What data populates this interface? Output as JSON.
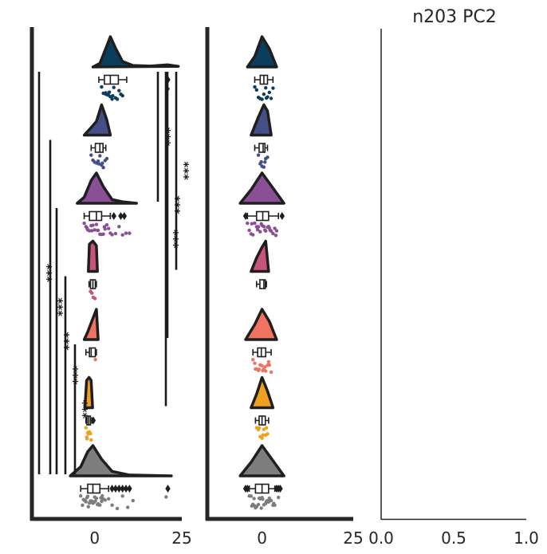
{
  "chart_data": [
    {
      "type": "raincloud",
      "panel": "left",
      "title": "",
      "xlim": [
        -18,
        25
      ],
      "xticks": [
        0,
        25
      ],
      "xtick_labels": [
        "0",
        "25"
      ],
      "grid": false,
      "groups": [
        {
          "color": "#0b3d5c",
          "median": 4.5,
          "q1": 2.8,
          "q3": 6.8,
          "whisker_low": 1.2,
          "whisker_high": 9.2,
          "density": [
            [
              -0.5,
              0
            ],
            [
              1.5,
              0.12
            ],
            [
              3,
              0.55
            ],
            [
              4.5,
              1
            ],
            [
              6,
              0.62
            ],
            [
              8,
              0.18
            ],
            [
              11,
              0.05
            ],
            [
              16,
              0.03
            ],
            [
              21,
              0.07
            ],
            [
              24,
              0.02
            ]
          ],
          "outliers": [
            21
          ],
          "points": [
            2,
            3,
            3.5,
            4,
            4.5,
            5,
            5.5,
            6,
            7,
            8,
            2.5,
            4.2,
            6.5,
            7.5,
            3.2,
            5.2,
            21
          ]
        },
        {
          "color": "#434f86",
          "median": 1.5,
          "q1": 0.2,
          "q3": 2.4,
          "whisker_low": -1.0,
          "whisker_high": 3.2,
          "density": [
            [
              -3,
              0
            ],
            [
              -1,
              0.25
            ],
            [
              0.5,
              0.45
            ],
            [
              2,
              1
            ],
            [
              3.5,
              0.5
            ],
            [
              4.5,
              0
            ]
          ],
          "outliers": [],
          "points": [
            -1,
            -0.5,
            0,
            0.5,
            1,
            1.5,
            2,
            2.5,
            3,
            3.5,
            1.2,
            2.2
          ]
        },
        {
          "color": "#8a4f95",
          "median": 0.5,
          "q1": -1.5,
          "q3": 2.0,
          "whisker_low": -3.0,
          "whisker_high": 4.5,
          "density": [
            [
              -5,
              0
            ],
            [
              -3,
              0.2
            ],
            [
              -1,
              0.75
            ],
            [
              0.5,
              1
            ],
            [
              2.5,
              0.55
            ],
            [
              5,
              0.12
            ],
            [
              8,
              0.05
            ],
            [
              12,
              0
            ]
          ],
          "outliers": [
            5.5,
            7.5,
            8.5
          ],
          "points": [
            -3,
            -2.5,
            -2,
            -1.5,
            -1,
            -0.5,
            0,
            0.5,
            1,
            1.5,
            2,
            2.5,
            3,
            3.5,
            4,
            5,
            6,
            7,
            9,
            10,
            -2.2,
            -0.8,
            0.8,
            2.8,
            4.5,
            8
          ]
        },
        {
          "color": "#c8547a",
          "median": -0.5,
          "q1": -1.2,
          "q3": 0.2,
          "whisker_low": -1.6,
          "whisker_high": 0.5,
          "density": [
            [
              -1.8,
              0
            ],
            [
              -1.5,
              0.9
            ],
            [
              -0.5,
              1
            ],
            [
              0.5,
              0.85
            ],
            [
              0.8,
              0
            ]
          ],
          "outliers": [],
          "points": [
            -1.2,
            -0.8,
            -0.4,
            0.1
          ]
        },
        {
          "color": "#f07260",
          "median": -1.0,
          "q1": -1.5,
          "q3": 0.2,
          "whisker_low": -2.5,
          "whisker_high": 0.5,
          "density": [
            [
              -3,
              0
            ],
            [
              -2,
              0.25
            ],
            [
              -1,
              0.55
            ],
            [
              0,
              0.85
            ],
            [
              0.5,
              1
            ],
            [
              1,
              0
            ]
          ],
          "outliers": [],
          "points": [
            0.2
          ]
        },
        {
          "color": "#f0a020",
          "median": -1.7,
          "q1": -2.2,
          "q3": -1.2,
          "whisker_low": -2.5,
          "whisker_high": -0.8,
          "density": [
            [
              -2.8,
              0
            ],
            [
              -2.3,
              0.9
            ],
            [
              -1.6,
              1
            ],
            [
              -1,
              0.9
            ],
            [
              -0.6,
              0
            ]
          ],
          "outliers": [
            -0.4
          ],
          "points": [
            -2.5,
            -2.2,
            -2,
            -1.8,
            -1.5,
            -1.2,
            -2.3,
            -1.6,
            -1
          ]
        },
        {
          "color": "#7d7d7d",
          "median": -0.5,
          "q1": -2.0,
          "q3": 1.5,
          "whisker_low": -4.0,
          "whisker_high": 4.0,
          "density": [
            [
              -7,
              0
            ],
            [
              -4,
              0.3
            ],
            [
              -2,
              0.8
            ],
            [
              -0.5,
              1
            ],
            [
              2,
              0.55
            ],
            [
              5,
              0.15
            ],
            [
              10,
              0.03
            ],
            [
              22,
              0
            ]
          ],
          "outliers": [
            5,
            6,
            7,
            8,
            9,
            10,
            21
          ],
          "points": [
            -4,
            -3.5,
            -3,
            -2.5,
            -2,
            -1.5,
            -1,
            -0.5,
            0,
            0.5,
            1,
            1.5,
            2,
            2.5,
            3,
            -3.2,
            -2.2,
            -1.2,
            -0.2,
            0.8,
            1.8,
            4,
            5,
            6.5,
            8,
            9.5,
            11,
            20.5,
            -2.8,
            -1.8,
            -0.8,
            0.2,
            1.2,
            2.2
          ]
        }
      ],
      "significance": [
        {
          "from": 0,
          "to": 6,
          "label": "***",
          "side": "left"
        },
        {
          "from": 1,
          "to": 6,
          "label": "***",
          "side": "left"
        },
        {
          "from": 2,
          "to": 6,
          "label": "***",
          "side": "left"
        },
        {
          "from": 3,
          "to": 6,
          "label": "***",
          "side": "left"
        },
        {
          "from": 4,
          "to": 6,
          "label": "***",
          "side": "left"
        },
        {
          "from": 0,
          "to": 2,
          "label": "***",
          "side": "right"
        },
        {
          "from": 0,
          "to": 4,
          "label": "***",
          "side": "right"
        },
        {
          "from": 0,
          "to": 3,
          "label": "***",
          "side": "right"
        },
        {
          "from": 0,
          "to": 5,
          "label": "***",
          "side": "right"
        }
      ]
    },
    {
      "type": "raincloud",
      "panel": "middle",
      "title": "",
      "xlim": [
        -15,
        25
      ],
      "xticks": [
        0,
        25
      ],
      "xtick_labels": [
        "0",
        "25"
      ],
      "grid": false,
      "groups": [
        {
          "color": "#0b3d5c",
          "median": 0.5,
          "q1": -0.5,
          "q3": 1.5,
          "whisker_low": -2.0,
          "whisker_high": 3.0,
          "density": [
            [
              -4,
              0
            ],
            [
              -2,
              0.35
            ],
            [
              0,
              1
            ],
            [
              2,
              0.6
            ],
            [
              4,
              0
            ]
          ],
          "outliers": [],
          "points": [
            -2,
            -1,
            -0.5,
            0,
            0.5,
            1,
            1.5,
            2,
            2.5,
            3,
            -1.5,
            1.2
          ]
        },
        {
          "color": "#434f86",
          "median": 0.3,
          "q1": -0.8,
          "q3": 0.8,
          "whisker_low": -2.0,
          "whisker_high": 1.5,
          "density": [
            [
              -3,
              0
            ],
            [
              -1,
              0.6
            ],
            [
              0.5,
              1
            ],
            [
              1.5,
              0.8
            ],
            [
              2.5,
              0
            ]
          ],
          "outliers": [],
          "points": [
            -1,
            -0.5,
            0,
            0.5,
            1,
            1.5,
            -0.2,
            0.8
          ]
        },
        {
          "color": "#8a4f95",
          "median": 0.2,
          "q1": -1.5,
          "q3": 1.8,
          "whisker_low": -4.0,
          "whisker_high": 4.5,
          "density": [
            [
              -6,
              0
            ],
            [
              -3,
              0.45
            ],
            [
              0,
              1
            ],
            [
              3,
              0.5
            ],
            [
              6,
              0
            ]
          ],
          "outliers": [
            -4.5,
            5.5
          ],
          "points": [
            -4,
            -3.5,
            -3,
            -2.5,
            -2,
            -1.5,
            -1,
            -0.5,
            0,
            0.5,
            1,
            1.5,
            2,
            2.5,
            3,
            3.5,
            4,
            -2.8,
            -1.2,
            0.8,
            2.2,
            3.8,
            -0.2,
            1.8
          ]
        },
        {
          "color": "#c8547a",
          "median": 0.5,
          "q1": -0.6,
          "q3": 0.9,
          "whisker_low": -1.5,
          "whisker_high": 1.2,
          "density": [
            [
              -3,
              0
            ],
            [
              -1.5,
              0.45
            ],
            [
              0,
              0.8
            ],
            [
              1,
              1
            ],
            [
              1.8,
              0
            ]
          ],
          "outliers": [],
          "points": []
        },
        {
          "color": "#f07260",
          "median": -0.2,
          "q1": -1.2,
          "q3": 1.0,
          "whisker_low": -2.5,
          "whisker_high": 2.5,
          "density": [
            [
              -4.5,
              0
            ],
            [
              -2,
              0.5
            ],
            [
              0,
              1
            ],
            [
              2,
              0.6
            ],
            [
              4,
              0
            ]
          ],
          "outliers": [],
          "points": [
            -2.5,
            -2,
            -1.5,
            -1,
            -0.5,
            0,
            0.5,
            1,
            1.5,
            2,
            2.5,
            -1.8,
            0.2,
            1.8,
            -0.8,
            0.8
          ]
        },
        {
          "color": "#f0a020",
          "median": 0.0,
          "q1": -0.8,
          "q3": 0.9,
          "whisker_low": -1.8,
          "whisker_high": 1.8,
          "density": [
            [
              -3,
              0
            ],
            [
              -1.5,
              0.45
            ],
            [
              0,
              1
            ],
            [
              1.5,
              0.55
            ],
            [
              3,
              0
            ]
          ],
          "outliers": [],
          "points": [
            -1.5,
            -1,
            -0.5,
            0,
            0.5,
            1,
            1.5,
            -0.8,
            0.3,
            1.2
          ]
        },
        {
          "color": "#7d7d7d",
          "median": 0.0,
          "q1": -1.8,
          "q3": 1.8,
          "whisker_low": -3.5,
          "whisker_high": 3.5,
          "density": [
            [
              -6,
              0
            ],
            [
              -3,
              0.45
            ],
            [
              0,
              1
            ],
            [
              3,
              0.5
            ],
            [
              6,
              0
            ]
          ],
          "outliers": [
            -4.5,
            -4,
            4,
            4.5,
            5
          ],
          "points": [
            -3.5,
            -3,
            -2.5,
            -2,
            -1.5,
            -1,
            -0.5,
            0,
            0.5,
            1,
            1.5,
            2,
            2.5,
            3,
            3.5,
            -2.8,
            -1.8,
            -0.8,
            0.2,
            1.2,
            2.2,
            3.2,
            -2.2,
            -0.2,
            1.8,
            4.5
          ]
        }
      ],
      "significance": []
    },
    {
      "type": "empty",
      "panel": "right",
      "title": "n203 PC2",
      "xlim": [
        0.0,
        1.0
      ],
      "xticks": [
        0.0,
        0.5,
        1.0
      ],
      "xtick_labels": [
        "0.0",
        "0.5",
        "1.0"
      ],
      "grid": false
    }
  ]
}
